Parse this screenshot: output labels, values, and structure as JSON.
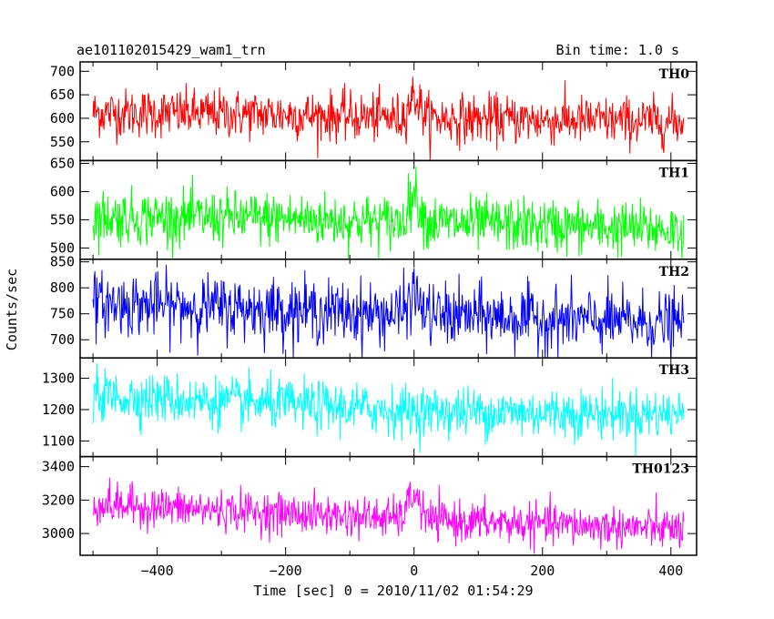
{
  "header": {
    "title": "ae101102015429_wam1_trn",
    "bin_time": "Bin time: 1.0 s"
  },
  "chart_data": {
    "type": "line",
    "xlabel": "Time [sec] 0 = 2010/11/02 01:54:29",
    "ylabel": "Counts/sec",
    "xlim": [
      -520,
      440
    ],
    "x_range": [
      -500,
      420
    ],
    "x_ticks": [
      -400,
      -200,
      0,
      200,
      400
    ],
    "x_tick_labels": [
      "−400",
      "−200",
      "0",
      "200",
      "400"
    ],
    "grid": false,
    "panels": [
      {
        "name": "TH0",
        "color": "#ff0000",
        "ylim": [
          510,
          720
        ],
        "y_ticks": [
          550,
          600,
          650,
          700
        ],
        "y_tick_labels": [
          "550",
          "600",
          "650",
          "700"
        ],
        "baseline": [
          [
            -500,
            612
          ],
          [
            -200,
            608
          ],
          [
            -20,
            600
          ],
          [
            0,
            650
          ],
          [
            20,
            600
          ],
          [
            420,
            592
          ]
        ],
        "noise": 26
      },
      {
        "name": "TH1",
        "color": "#00ff00",
        "ylim": [
          480,
          655
        ],
        "y_ticks": [
          500,
          550,
          600,
          650
        ],
        "y_tick_labels": [
          "500",
          "550",
          "600",
          "650"
        ],
        "baseline": [
          [
            -500,
            555
          ],
          [
            -200,
            552
          ],
          [
            -20,
            545
          ],
          [
            0,
            600
          ],
          [
            20,
            545
          ],
          [
            420,
            532
          ]
        ],
        "noise": 24
      },
      {
        "name": "TH2",
        "color": "#0000ff",
        "ylim": [
          665,
          855
        ],
        "y_ticks": [
          700,
          750,
          800,
          850
        ],
        "y_tick_labels": [
          "700",
          "750",
          "800",
          "850"
        ],
        "baseline": [
          [
            -500,
            770
          ],
          [
            -250,
            760
          ],
          [
            -20,
            748
          ],
          [
            0,
            790
          ],
          [
            20,
            748
          ],
          [
            420,
            730
          ]
        ],
        "noise": 30
      },
      {
        "name": "TH3",
        "color": "#00ffff",
        "ylim": [
          1050,
          1365
        ],
        "y_ticks": [
          1100,
          1200,
          1300
        ],
        "y_tick_labels": [
          "1100",
          "1200",
          "1300"
        ],
        "baseline": [
          [
            -500,
            1245
          ],
          [
            -200,
            1215
          ],
          [
            0,
            1195
          ],
          [
            420,
            1185
          ]
        ],
        "noise": 40
      },
      {
        "name": "TH0123",
        "color": "#ff00ff",
        "ylim": [
          2870,
          3460
        ],
        "y_ticks": [
          3000,
          3200,
          3400
        ],
        "y_tick_labels": [
          "3000",
          "3200",
          "3400"
        ],
        "baseline": [
          [
            -500,
            3175
          ],
          [
            -200,
            3120
          ],
          [
            -20,
            3090
          ],
          [
            0,
            3250
          ],
          [
            20,
            3080
          ],
          [
            420,
            3025
          ]
        ],
        "noise": 60
      }
    ]
  }
}
